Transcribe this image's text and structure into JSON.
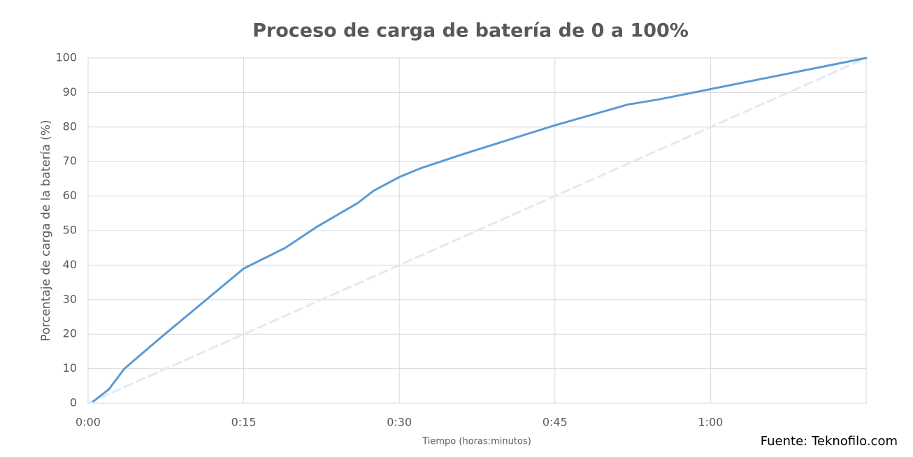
{
  "chart_data": {
    "type": "line",
    "title": "Proceso de carga de batería de 0 a 100%",
    "x_label": "Tiempo (horas:minutos)",
    "y_label": "Porcentaje de carga de la batería (%)",
    "source": "Fuente: Teknofilo.com",
    "xlim": [
      0,
      75
    ],
    "ylim": [
      0,
      100
    ],
    "xticks": [
      {
        "value": 0,
        "label": "0:00"
      },
      {
        "value": 15,
        "label": "0:15"
      },
      {
        "value": 30,
        "label": "0:30"
      },
      {
        "value": 45,
        "label": "0:45"
      },
      {
        "value": 60,
        "label": "1:00"
      }
    ],
    "yticks": [
      0,
      10,
      20,
      30,
      40,
      50,
      60,
      70,
      80,
      90,
      100
    ],
    "grid": true,
    "series": [
      {
        "color": "#5b9bd5",
        "dash": false,
        "x": [
          0.5,
          2,
          3.5,
          7,
          15,
          17,
          19,
          22,
          26,
          27.5,
          30,
          32,
          36,
          45,
          52,
          55,
          60,
          75
        ],
        "values": [
          0.5,
          4,
          10,
          19,
          39,
          42,
          45,
          51,
          58,
          61.5,
          65.5,
          68,
          72,
          80.5,
          86.5,
          88,
          91,
          100
        ]
      },
      {
        "color": "#deebf7",
        "dash": true,
        "x": [
          0,
          75
        ],
        "values": [
          0,
          100
        ]
      }
    ]
  }
}
